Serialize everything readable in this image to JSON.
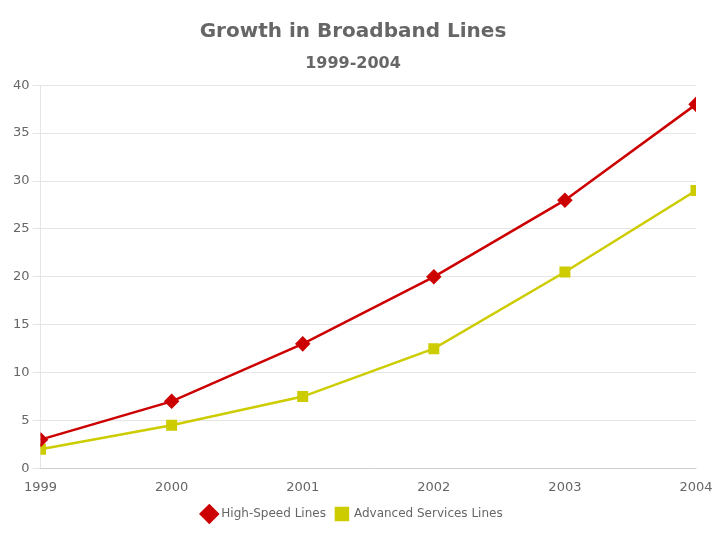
{
  "chart_data": {
    "type": "line",
    "title": "Growth in Broadband Lines",
    "subtitle": "1999-2004",
    "x": [
      1999,
      2000,
      2001,
      2002,
      2003,
      2004
    ],
    "series": [
      {
        "name": "High-Speed Lines",
        "color": "#CC0000",
        "marker": "diamond",
        "values": [
          3,
          7,
          13,
          20,
          28,
          38
        ]
      },
      {
        "name": "Advanced Services Lines",
        "color": "#CCCC00",
        "marker": "square",
        "values": [
          2,
          4.5,
          7.5,
          12.5,
          20.5,
          29
        ]
      }
    ],
    "xlim": [
      1999,
      2004
    ],
    "xticks": [
      1999,
      2000,
      2001,
      2002,
      2003,
      2004
    ],
    "ylim": [
      0,
      40
    ],
    "yticks": [
      0,
      5,
      10,
      15,
      20,
      25,
      30,
      35,
      40
    ],
    "grid": "y",
    "legend": "bottom"
  }
}
